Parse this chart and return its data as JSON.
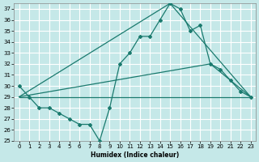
{
  "xlabel": "Humidex (Indice chaleur)",
  "bg_color": "#c5e8e8",
  "grid_color": "#ffffff",
  "line_color": "#1a7a6e",
  "line1_x": [
    0,
    1,
    2,
    3,
    4,
    5,
    6,
    7,
    8,
    9,
    10,
    11,
    12,
    13,
    14,
    15,
    16,
    17,
    18,
    19,
    20,
    21,
    22,
    23
  ],
  "line1_y": [
    30,
    29,
    28,
    28,
    27.5,
    27,
    26.5,
    26.5,
    25,
    28,
    32,
    33,
    34.5,
    34.5,
    36,
    37.5,
    37,
    35,
    35.5,
    32,
    31.5,
    30.5,
    29.5,
    29
  ],
  "line2_x": [
    0,
    15,
    23
  ],
  "line2_y": [
    29,
    37.5,
    29
  ],
  "line3_x": [
    0,
    19,
    23
  ],
  "line3_y": [
    29,
    32,
    29
  ],
  "line4_x": [
    0,
    23
  ],
  "line4_y": [
    29,
    29
  ],
  "xlim": [
    -0.5,
    23.5
  ],
  "ylim": [
    25,
    37.5
  ],
  "yticks": [
    25,
    26,
    27,
    28,
    29,
    30,
    31,
    32,
    33,
    34,
    35,
    36,
    37
  ],
  "xticks": [
    0,
    1,
    2,
    3,
    4,
    5,
    6,
    7,
    8,
    9,
    10,
    11,
    12,
    13,
    14,
    15,
    16,
    17,
    18,
    19,
    20,
    21,
    22,
    23
  ]
}
